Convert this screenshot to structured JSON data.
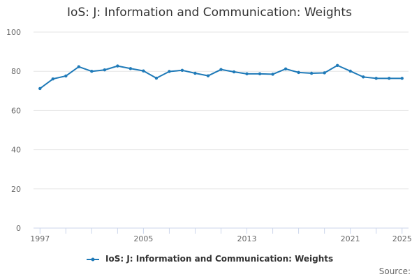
{
  "chart_data": {
    "type": "line",
    "title": "IoS: J: Information and Communication: Weights",
    "xlabel": "",
    "ylabel": "",
    "ylim": [
      0,
      100
    ],
    "yticks": [
      "0",
      "20",
      "40",
      "60",
      "80",
      "100"
    ],
    "xticks": [
      "1997",
      "2005",
      "2013",
      "2021",
      "2025"
    ],
    "grid": true,
    "legend_position": "bottom",
    "series": [
      {
        "name": "IoS: J: Information and Communication: Weights",
        "color": "#1f7ab8",
        "x": [
          1997,
          1998,
          1999,
          2000,
          2001,
          2002,
          2003,
          2004,
          2005,
          2006,
          2007,
          2008,
          2009,
          2010,
          2011,
          2012,
          2013,
          2014,
          2015,
          2016,
          2017,
          2018,
          2019,
          2020,
          2021,
          2022,
          2023,
          2024,
          2025
        ],
        "values": [
          71.2,
          76.1,
          77.6,
          82.3,
          80.0,
          80.7,
          82.7,
          81.4,
          80.2,
          76.5,
          79.9,
          80.5,
          79.0,
          77.7,
          80.9,
          79.7,
          78.7,
          78.7,
          78.5,
          81.2,
          79.4,
          79.0,
          79.2,
          83.0,
          80.1,
          77.1,
          76.4,
          76.4,
          76.4
        ]
      }
    ]
  },
  "source_label": "Source:"
}
